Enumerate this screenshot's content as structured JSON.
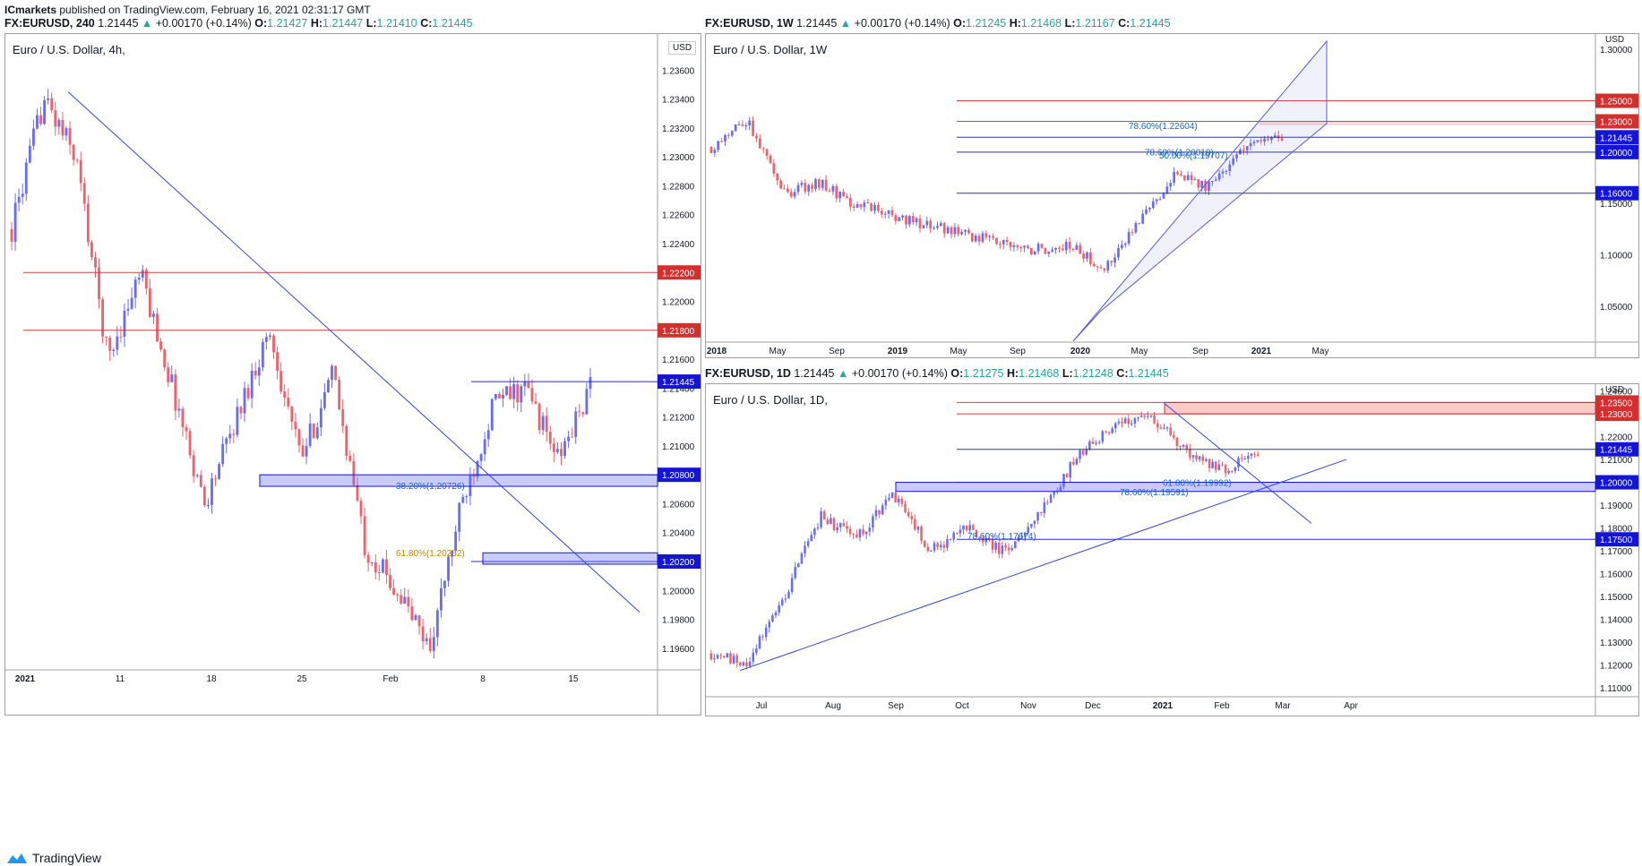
{
  "header": {
    "author": "ICmarkets",
    "published": "published on TradingView.com, February 16, 2021 02:31:17 GMT"
  },
  "footer": {
    "brand": "TradingView"
  },
  "colors": {
    "up": "#6a6cf2",
    "down": "#f0616b",
    "red": "#d32f2f",
    "blue": "#1515d6",
    "trend": "#3344e0"
  },
  "panels": [
    {
      "id": "p4h",
      "symbol": "FX:EURUSD, 240",
      "last": "1.21445",
      "change": "+0.00170 (+0.14%)",
      "ohlc": {
        "o": "1.21427",
        "h": "1.21447",
        "l": "1.21410",
        "c": "1.21445"
      },
      "title": "Euro / U.S. Dollar, 4h,",
      "currency": "USD",
      "chart_data": {
        "type": "candlestick",
        "title": "Euro / U.S. Dollar, 4h,",
        "ylim": [
          1.1945,
          1.2385
        ],
        "y_ticks": [
          "1.23600",
          "1.23400",
          "1.23200",
          "1.23000",
          "1.22800",
          "1.22600",
          "1.22400",
          "1.22200",
          "1.22000",
          "1.21800",
          "1.21600",
          "1.21400",
          "1.21200",
          "1.21000",
          "1.20800",
          "1.20600",
          "1.20400",
          "1.20200",
          "1.20000",
          "1.19800",
          "1.19600"
        ],
        "x_ticks": [
          "2021",
          "11",
          "18",
          "25",
          "Feb",
          "8",
          "15"
        ],
        "price_labels": [
          {
            "text": "1.22200",
            "price": 1.222,
            "color": "red"
          },
          {
            "text": "1.21800",
            "price": 1.218,
            "color": "red"
          },
          {
            "text": "1.21445",
            "price": 1.21445,
            "color": "blue"
          },
          {
            "text": "1.20800",
            "price": 1.208,
            "color": "blue"
          },
          {
            "text": "1.20200",
            "price": 1.202,
            "color": "blue"
          }
        ],
        "fib_labels": [
          {
            "text": "38.20%(1.20726)",
            "price": 1.20726,
            "color": "#1565c0"
          },
          {
            "text": "61.80%(1.20262)",
            "price": 1.20262,
            "color": "#c08a00"
          }
        ],
        "anchors": [
          [
            1.225,
            1.223
          ],
          [
            1.234,
            1.233
          ],
          [
            1.23,
            1.227
          ],
          [
            1.216,
            1.214
          ],
          [
            1.222,
            1.218
          ],
          [
            1.214,
            1.215
          ],
          [
            1.206,
            1.206
          ],
          [
            1.212,
            1.214
          ],
          [
            1.218,
            1.218
          ],
          [
            1.209,
            1.21
          ],
          [
            1.215,
            1.214
          ],
          [
            1.203,
            1.205
          ],
          [
            1.2,
            1.2
          ],
          [
            1.196,
            1.197
          ],
          [
            1.206,
            1.206
          ],
          [
            1.213,
            1.213
          ],
          [
            1.214,
            1.215
          ],
          [
            1.209,
            1.21
          ],
          [
            1.214,
            1.2145
          ]
        ],
        "n": 160
      }
    },
    {
      "id": "p1w",
      "symbol": "FX:EURUSD, 1W",
      "last": "1.21445",
      "change": "+0.00170 (+0.14%)",
      "ohlc": {
        "o": "1.21245",
        "h": "1.21468",
        "l": "1.21167",
        "c": "1.21445"
      },
      "title": "Euro / U.S. Dollar, 1W",
      "currency": "USD",
      "chart_data": {
        "type": "candlestick",
        "title": "Euro / U.S. Dollar, 1W",
        "ylim": [
          1.015,
          1.315
        ],
        "y_ticks": [
          "1.30000",
          "1.25000",
          "1.20000",
          "1.15000",
          "1.10000",
          "1.05000"
        ],
        "x_ticks": [
          "2018",
          "May",
          "Sep",
          "2019",
          "May",
          "Sep",
          "2020",
          "May",
          "Sep",
          "2021",
          "May"
        ],
        "price_labels": [
          {
            "text": "1.25000",
            "price": 1.25,
            "color": "red"
          },
          {
            "text": "1.23000",
            "price": 1.23,
            "color": "red"
          },
          {
            "text": "1.21445",
            "price": 1.21445,
            "color": "blue"
          },
          {
            "text": "1.20000",
            "price": 1.2,
            "color": "blue"
          },
          {
            "text": "1.16000",
            "price": 1.16,
            "color": "blue"
          }
        ],
        "fib_labels": [
          {
            "text": "78.60%(1.22604)",
            "price": 1.22604,
            "color": "#1565c0"
          },
          {
            "text": "78.60%(1.20018)",
            "price": 1.20018,
            "color": "#1565c0"
          },
          {
            "text": "50.00%(1.19707)",
            "price": 1.19707,
            "color": "#1565c0"
          }
        ],
        "anchors": [
          [
            1.205,
            1.245
          ],
          [
            1.23,
            1.225
          ],
          [
            1.16,
            1.17
          ],
          [
            1.17,
            1.16
          ],
          [
            1.15,
            1.14
          ],
          [
            1.14,
            1.135
          ],
          [
            1.13,
            1.125
          ],
          [
            1.12,
            1.105
          ],
          [
            1.115,
            1.098
          ],
          [
            1.105,
            1.11
          ],
          [
            1.11,
            1.07
          ],
          [
            1.085,
            1.12
          ],
          [
            1.13,
            1.17
          ],
          [
            1.18,
            1.175
          ],
          [
            1.165,
            1.185
          ],
          [
            1.21,
            1.225
          ],
          [
            1.215,
            1.2145
          ]
        ],
        "n": 165
      }
    },
    {
      "id": "p1d",
      "symbol": "FX:EURUSD, 1D",
      "last": "1.21445",
      "change": "+0.00170 (+0.14%)",
      "ohlc": {
        "o": "1.21275",
        "h": "1.21468",
        "l": "1.21248",
        "c": "1.21445"
      },
      "title": "Euro / U.S. Dollar, 1D,",
      "currency": "USD",
      "chart_data": {
        "type": "candlestick",
        "title": "Euro / U.S. Dollar, 1D,",
        "ylim": [
          1.106,
          1.243
        ],
        "y_ticks": [
          "1.24000",
          "1.23000",
          "1.22000",
          "1.21000",
          "1.20000",
          "1.19000",
          "1.18000",
          "1.17000",
          "1.16000",
          "1.15000",
          "1.14000",
          "1.13000",
          "1.12000",
          "1.11000"
        ],
        "x_ticks": [
          "Jul",
          "Aug",
          "Sep",
          "Oct",
          "Nov",
          "Dec",
          "2021",
          "Feb",
          "Mar",
          "Apr"
        ],
        "price_labels": [
          {
            "text": "1.23500",
            "price": 1.235,
            "color": "red"
          },
          {
            "text": "1.23000",
            "price": 1.23,
            "color": "red"
          },
          {
            "text": "1.21445",
            "price": 1.21445,
            "color": "blue"
          },
          {
            "text": "1.20000",
            "price": 1.2,
            "color": "blue"
          },
          {
            "text": "1.17500",
            "price": 1.175,
            "color": "blue"
          }
        ],
        "fib_labels": [
          {
            "text": "78.60%(1.17674)",
            "price": 1.17674,
            "color": "#1565c0"
          },
          {
            "text": "61.80%(1.19992)",
            "price": 1.19992,
            "color": "#1565c0"
          },
          {
            "text": "78.60%(1.19591)",
            "price": 1.19591,
            "color": "#1565c0"
          }
        ],
        "anchors": [
          [
            1.125,
            1.13
          ],
          [
            1.12,
            1.125
          ],
          [
            1.15,
            1.175
          ],
          [
            1.185,
            1.19
          ],
          [
            1.175,
            1.185
          ],
          [
            1.195,
            1.18
          ],
          [
            1.17,
            1.165
          ],
          [
            1.18,
            1.175
          ],
          [
            1.17,
            1.165
          ],
          [
            1.185,
            1.195
          ],
          [
            1.21,
            1.215
          ],
          [
            1.225,
            1.22
          ],
          [
            1.23,
            1.225
          ],
          [
            1.215,
            1.21
          ],
          [
            1.205,
            1.215
          ],
          [
            1.213,
            1.2145
          ]
        ],
        "n": 170
      }
    }
  ]
}
